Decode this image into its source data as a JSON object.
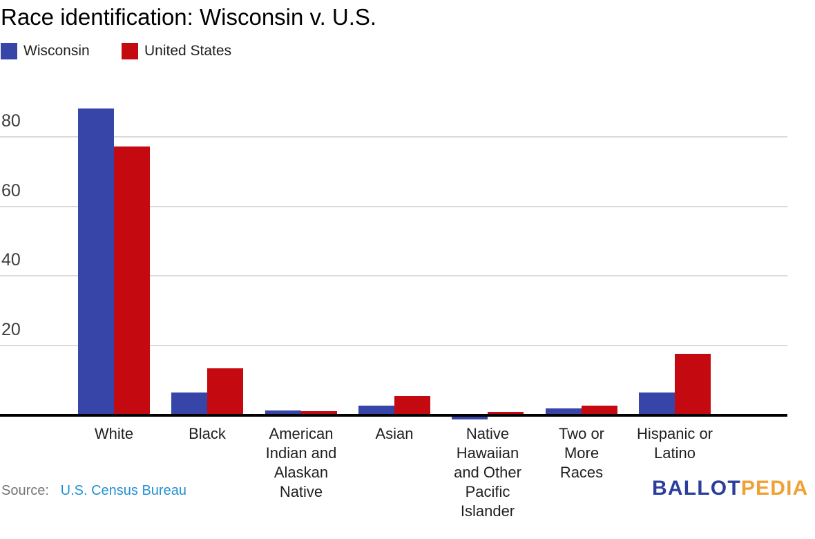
{
  "header": {
    "title": "Race identification: Wisconsin v. U.S."
  },
  "chart_data": {
    "type": "bar",
    "title": "Race identification: Wisconsin v. U.S.",
    "unit": "percent",
    "categories": [
      "White",
      "Black",
      "American Indian and Alaskan Native",
      "Asian",
      "Native Hawaiian and Other Pacific Islander",
      "Two or More Races",
      "Hispanic or Latino"
    ],
    "category_display": [
      "White",
      "Black",
      "American\nIndian and\nAlaskan\nNative",
      "Asian",
      "Native\nHawaiian\nand Other\nPacific\nIslander",
      "Two or\nMore\nRaces",
      "Hispanic or\nLatino"
    ],
    "series": [
      {
        "name": "Wisconsin",
        "color": "#3745a8",
        "values": [
          88,
          6.2,
          1.0,
          2.3,
          0.1,
          1.5,
          6.2
        ]
      },
      {
        "name": "United States",
        "color": "#c50911",
        "values": [
          77,
          13.2,
          0.8,
          5.2,
          0.5,
          2.4,
          17.4
        ]
      }
    ],
    "ylim": [
      0,
      90
    ],
    "yticks": [
      20,
      40,
      60,
      80
    ],
    "grid": true,
    "gridline_color": "#dadada",
    "axis_color": "#000000",
    "legend_position": "top-left"
  },
  "footer": {
    "source_prefix": "Source:",
    "source_link_text": "U.S. Census Bureau",
    "logo_part1": "BALLOT",
    "logo_part2": "PEDIA",
    "logo_color1": "#2c3e9c",
    "logo_color2": "#f0a135"
  }
}
